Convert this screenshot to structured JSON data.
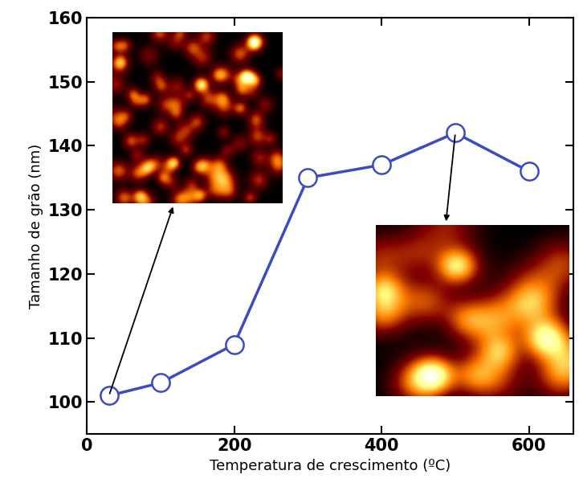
{
  "chart_data": {
    "type": "line",
    "x_label": "Temperatura de crescimento (ºC)",
    "y_label": "Tamanho de grão (nm)",
    "x": [
      30,
      100,
      200,
      300,
      400,
      500,
      600
    ],
    "values": [
      101,
      103,
      109,
      135,
      137,
      142,
      136
    ],
    "color": "#3a4cc0",
    "marker": "o",
    "line_style": "solid",
    "xlim": [
      0,
      660
    ],
    "xticks": [
      0,
      200,
      400,
      600
    ],
    "ylim": [
      95,
      160
    ],
    "yticks": [
      100,
      110,
      120,
      130,
      140,
      150,
      160
    ],
    "grid": false
  }
}
